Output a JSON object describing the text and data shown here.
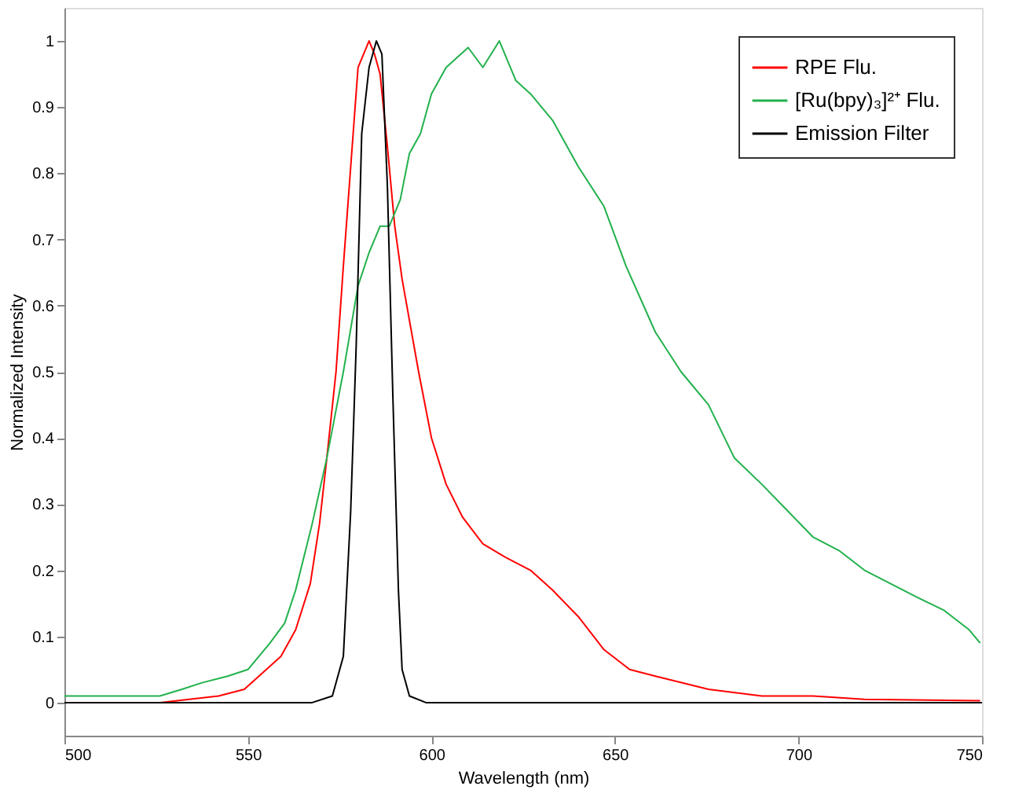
{
  "chart_data": {
    "type": "line",
    "xlabel": "Wavelength (nm)",
    "ylabel": "Normalized Intensity",
    "xlim": [
      500,
      750
    ],
    "xticks": [
      500,
      550,
      600,
      650,
      700,
      750
    ],
    "ylim": [
      -0.05,
      1.05
    ],
    "yticks": [
      0,
      0.1,
      0.2,
      0.3,
      0.4,
      0.5,
      0.6,
      0.7,
      0.8,
      0.9,
      1
    ],
    "grid": false,
    "legend": "top right",
    "marker": "none",
    "line_style": "solid",
    "series": [
      {
        "name": "RPE Flu.",
        "color": "#ff0000",
        "x": [
          526,
          542,
          549,
          553,
          559,
          563,
          567,
          569.5,
          571.5,
          574,
          576,
          578,
          580,
          583,
          584.5,
          586,
          588,
          590,
          592,
          596.5,
          600,
          604,
          608.5,
          614,
          620,
          627,
          633,
          640,
          647,
          654,
          661,
          675.5,
          690,
          704,
          718,
          749.5
        ],
        "values": [
          0,
          0.01,
          0.02,
          0.04,
          0.07,
          0.11,
          0.18,
          0.27,
          0.37,
          0.5,
          0.66,
          0.81,
          0.96,
          1,
          0.98,
          0.95,
          0.84,
          0.72,
          0.64,
          0.5,
          0.4,
          0.33,
          0.28,
          0.24,
          0.22,
          0.2,
          0.17,
          0.13,
          0.08,
          0.05,
          0.04,
          0.02,
          0.01,
          0.01,
          0.005,
          0.003
        ]
      },
      {
        "name": "[Ru(bpy)₃]²⁺ Flu.",
        "color": "#22b14c",
        "x": [
          500,
          506,
          513,
          520.5,
          526,
          532,
          537.5,
          544.5,
          550,
          556,
          560,
          563,
          567.5,
          571.5,
          576,
          580,
          583,
          586,
          588.5,
          591.5,
          594,
          597,
          600,
          604,
          610,
          614,
          618.5,
          623,
          627,
          633,
          640,
          647,
          653,
          661,
          668,
          675.5,
          682.5,
          690,
          697,
          704,
          711,
          718,
          725,
          732,
          739.5,
          746.5,
          749.5
        ],
        "values": [
          0.01,
          0.01,
          0.01,
          0.01,
          0.01,
          0.02,
          0.03,
          0.04,
          0.05,
          0.09,
          0.12,
          0.17,
          0.27,
          0.37,
          0.5,
          0.63,
          0.68,
          0.72,
          0.72,
          0.76,
          0.83,
          0.86,
          0.92,
          0.96,
          0.99,
          0.96,
          1,
          0.94,
          0.92,
          0.88,
          0.81,
          0.75,
          0.66,
          0.56,
          0.5,
          0.45,
          0.37,
          0.33,
          0.29,
          0.25,
          0.23,
          0.2,
          0.18,
          0.16,
          0.14,
          0.11,
          0.09
        ]
      },
      {
        "name": "Emission Filter",
        "color": "#000000",
        "x": [
          500,
          560,
          567.5,
          573,
          576,
          578,
          579.5,
          581,
          583,
          585,
          586.5,
          588,
          589.5,
          591,
          592,
          594,
          598.5,
          620,
          750
        ],
        "values": [
          0,
          0,
          0,
          0.01,
          0.07,
          0.29,
          0.54,
          0.86,
          0.96,
          1,
          0.98,
          0.78,
          0.46,
          0.17,
          0.05,
          0.01,
          0,
          0,
          0
        ]
      }
    ]
  }
}
